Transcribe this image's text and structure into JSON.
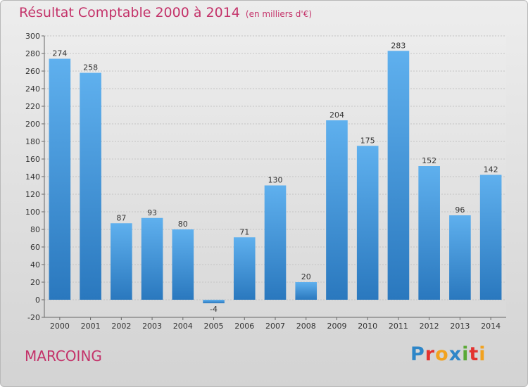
{
  "title": "Résultat Comptable 2000 à 2014",
  "unit": "(en milliers d'€)",
  "commune": "MARCOING",
  "logo": {
    "letters": [
      {
        "ch": "P",
        "color": "#2e86c8"
      },
      {
        "ch": "r",
        "color": "#e3322f"
      },
      {
        "ch": "o",
        "color": "#f2a21f"
      },
      {
        "ch": "x",
        "color": "#2e86c8"
      },
      {
        "ch": "i",
        "color": "#5aa935"
      },
      {
        "ch": "t",
        "color": "#e3322f"
      },
      {
        "ch": "i",
        "color": "#f2a21f"
      }
    ]
  },
  "chart_data": {
    "type": "bar",
    "title": "Résultat Comptable 2000 à 2014",
    "categories": [
      "2000",
      "2001",
      "2002",
      "2003",
      "2004",
      "2005",
      "2006",
      "2007",
      "2008",
      "2009",
      "2010",
      "2011",
      "2012",
      "2013",
      "2014"
    ],
    "values": [
      274,
      258,
      87,
      93,
      80,
      -4,
      71,
      130,
      20,
      204,
      175,
      283,
      152,
      96,
      142
    ],
    "ylim": [
      -20,
      300
    ],
    "yticks": [
      -20,
      0,
      20,
      40,
      60,
      80,
      100,
      120,
      140,
      160,
      180,
      200,
      220,
      240,
      260,
      280,
      300
    ],
    "grid": true,
    "bar_color": "#3d8fd6"
  }
}
